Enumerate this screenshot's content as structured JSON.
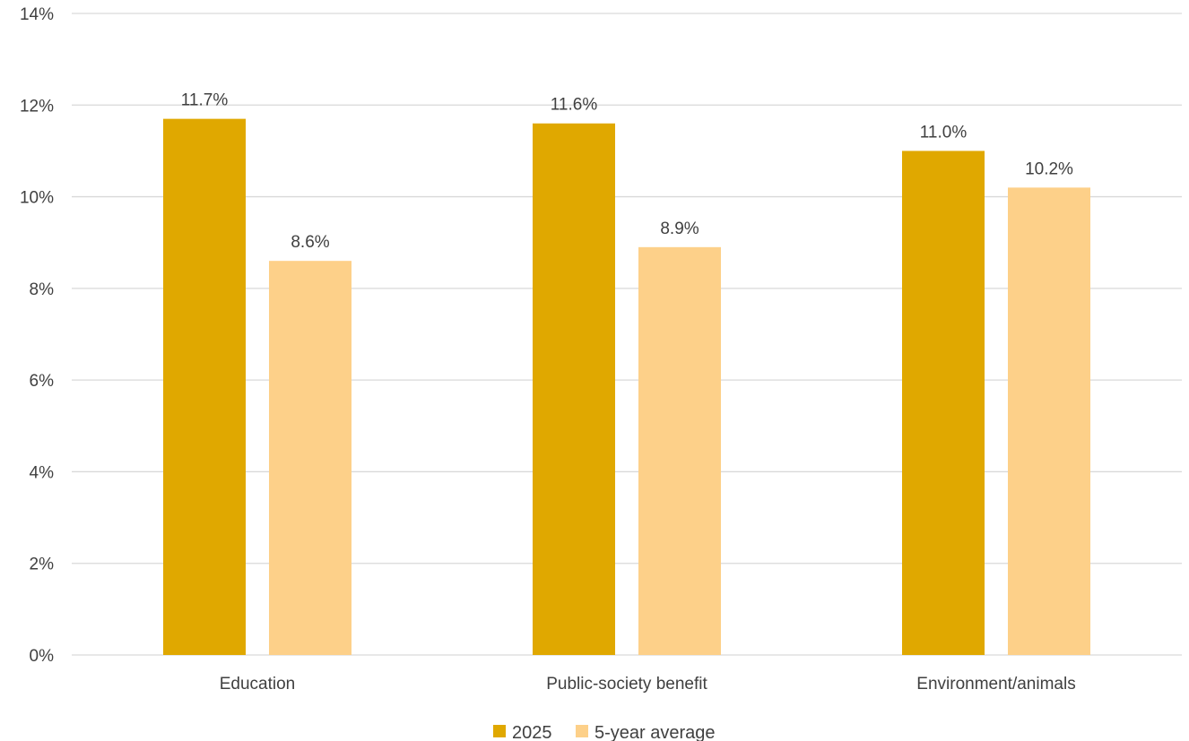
{
  "chart_data": {
    "type": "bar",
    "categories": [
      "Education",
      "Public-society benefit",
      "Environment/animals"
    ],
    "series": [
      {
        "name": "2025",
        "values": [
          11.7,
          11.6,
          11.0
        ],
        "labels": [
          "11.7%",
          "11.6%",
          "11.0%"
        ],
        "color": "#E0A800"
      },
      {
        "name": "5-year average",
        "values": [
          8.6,
          8.9,
          10.2
        ],
        "labels": [
          "8.6%",
          "8.9%",
          "10.2%"
        ],
        "color": "#FDD089"
      }
    ],
    "ylim": [
      0,
      14
    ],
    "yticks": [
      {
        "value": 0,
        "label": "0%"
      },
      {
        "value": 2,
        "label": "2%"
      },
      {
        "value": 4,
        "label": "4%"
      },
      {
        "value": 6,
        "label": "6%"
      },
      {
        "value": 8,
        "label": "8%"
      },
      {
        "value": 10,
        "label": "10%"
      },
      {
        "value": 12,
        "label": "12%"
      },
      {
        "value": 14,
        "label": "14%"
      }
    ],
    "grid": true,
    "legend_position": "bottom",
    "gridline_color": "#D9D9D9",
    "text_color": "#404040"
  }
}
